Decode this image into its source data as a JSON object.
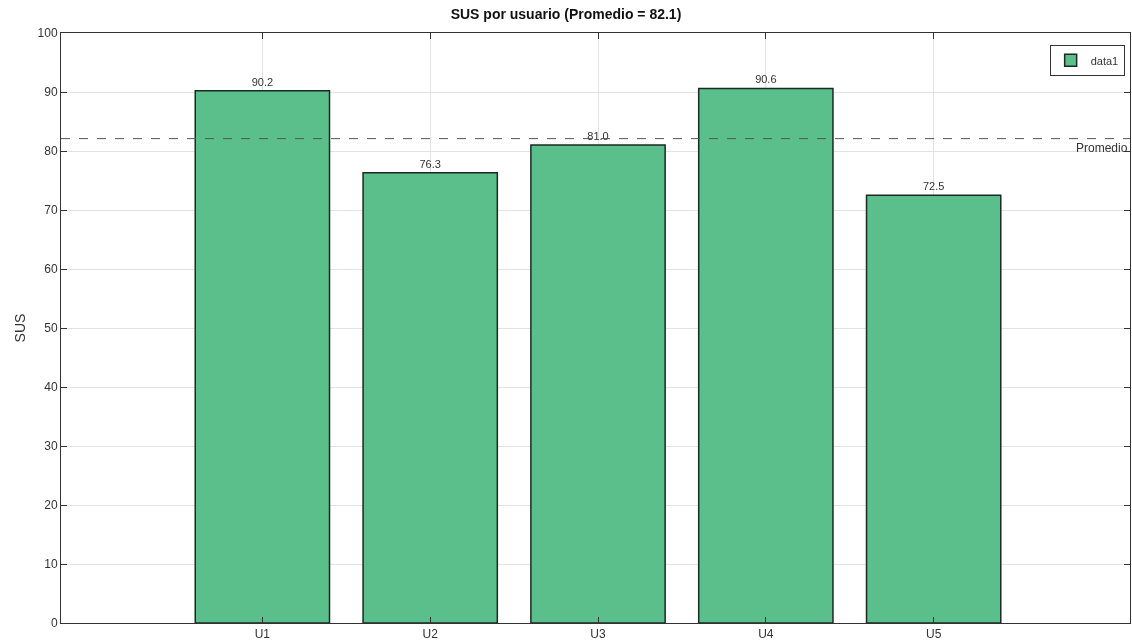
{
  "chart_data": {
    "type": "bar",
    "title": "SUS por usuario (Promedio = 82.1)",
    "ylabel": "SUS",
    "categories": [
      "U1",
      "U2",
      "U3",
      "U4",
      "U5"
    ],
    "series": [
      {
        "name": "data1",
        "color": "#5bbf8c",
        "values": [
          90.2,
          76.3,
          81.0,
          90.6,
          72.5
        ],
        "value_labels": [
          "90.2",
          "76.3",
          "81.0",
          "90.6",
          "72.5"
        ]
      }
    ],
    "ylim": [
      0,
      100
    ],
    "yticks": [
      0,
      10,
      20,
      30,
      40,
      50,
      60,
      70,
      80,
      90,
      100
    ],
    "grid": true,
    "legend": "top right",
    "ref_lines": [
      {
        "axis": "y",
        "value": 82.1,
        "label": "Promedio",
        "color": "#555555",
        "line_style": "dashed"
      }
    ]
  }
}
